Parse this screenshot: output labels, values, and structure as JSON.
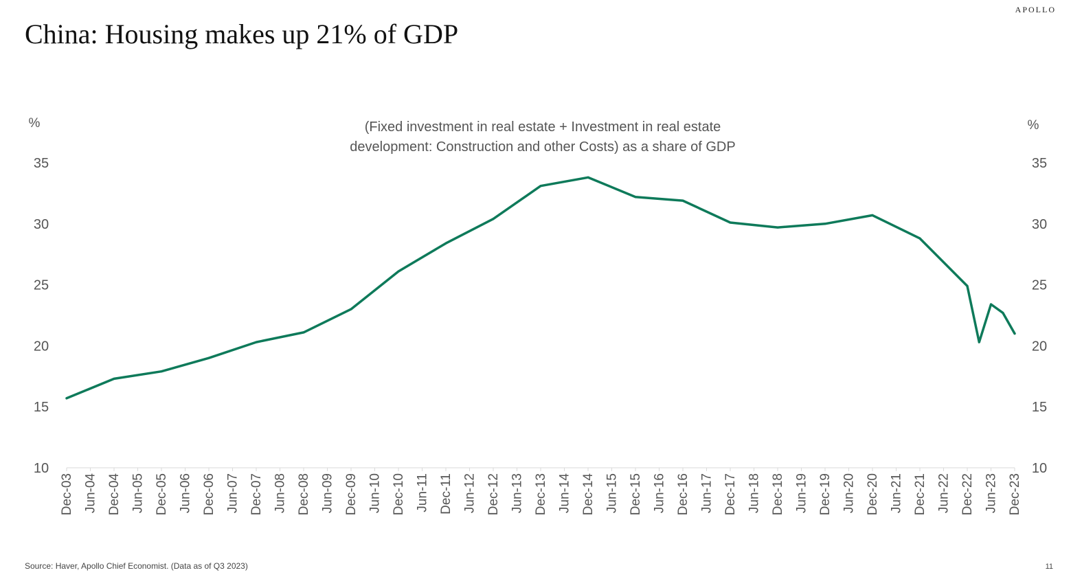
{
  "brand": "APOLLO",
  "title": "China: Housing makes up 21% of GDP",
  "source": "Source: Haver, Apollo Chief Economist. (Data as of Q3 2023)",
  "page_number": "11",
  "colors": {
    "line": "#0e7a5a",
    "axis": "#d9d9d9",
    "text": "#555555"
  },
  "chart_data": {
    "type": "line",
    "title": "",
    "subtitle_lines": [
      "(Fixed investment in real estate + Investment in real estate",
      "development: Construction and other Costs) as a share of GDP"
    ],
    "ylabel_left": "%",
    "ylabel_right": "%",
    "ylim": [
      10,
      35
    ],
    "yticks": [
      10,
      15,
      20,
      25,
      30,
      35
    ],
    "grid": false,
    "x_tick_labels": [
      "Dec-03",
      "Jun-04",
      "Dec-04",
      "Jun-05",
      "Dec-05",
      "Jun-06",
      "Dec-06",
      "Jun-07",
      "Dec-07",
      "Jun-08",
      "Dec-08",
      "Jun-09",
      "Dec-09",
      "Jun-10",
      "Dec-10",
      "Jun-11",
      "Dec-11",
      "Jun-12",
      "Dec-12",
      "Jun-13",
      "Dec-13",
      "Jun-14",
      "Dec-14",
      "Jun-15",
      "Dec-15",
      "Jun-16",
      "Dec-16",
      "Jun-17",
      "Dec-17",
      "Jun-18",
      "Dec-18",
      "Jun-19",
      "Dec-19",
      "Jun-20",
      "Dec-20",
      "Jun-21",
      "Dec-21",
      "Jun-22",
      "Dec-22",
      "Jun-23",
      "Dec-23"
    ],
    "series": [
      {
        "x": [
          "Dec-03",
          "Dec-04",
          "Dec-05",
          "Dec-06",
          "Dec-07",
          "Dec-08",
          "Dec-09",
          "Dec-10",
          "Dec-11",
          "Dec-12",
          "Dec-13",
          "Dec-14",
          "Dec-15",
          "Dec-16",
          "Dec-17",
          "Dec-18",
          "Dec-19",
          "Dec-20",
          "Dec-21",
          "Dec-22",
          "Mar-23",
          "Jun-23",
          "Sep-23",
          "Dec-23"
        ],
        "values": [
          15.7,
          17.3,
          17.9,
          19.0,
          20.3,
          21.1,
          23.0,
          26.1,
          28.4,
          30.4,
          33.1,
          33.8,
          32.2,
          31.9,
          30.1,
          29.7,
          30.0,
          30.7,
          28.8,
          24.9,
          20.3,
          23.4,
          22.7,
          21.0
        ]
      }
    ]
  }
}
